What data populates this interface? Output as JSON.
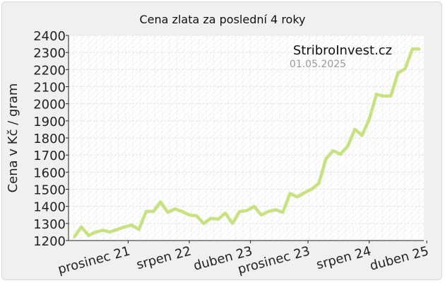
{
  "chart_data": {
    "type": "line",
    "title": "Cena zlata za poslední 4 roky",
    "ylabel": "Cena v Kč / gram",
    "xlabel": "",
    "ylim": [
      1200,
      2400
    ],
    "yticks": [
      1200,
      1300,
      1400,
      1500,
      1600,
      1700,
      1800,
      1900,
      2000,
      2100,
      2200,
      2300,
      2400
    ],
    "x_tick_labels": [
      "prosinec 21",
      "srpen 22",
      "duben 23",
      "prosinec 23",
      "srpen 24",
      "duben 25"
    ],
    "grid": true,
    "watermark": "StribroInvest.cz",
    "date": "01.05.2025",
    "line_color": "#c8e27a",
    "series": [
      {
        "name": "",
        "values": [
          1220,
          1280,
          1230,
          1250,
          1260,
          1250,
          1265,
          1280,
          1290,
          1265,
          1370,
          1370,
          1425,
          1365,
          1385,
          1370,
          1350,
          1345,
          1300,
          1330,
          1325,
          1360,
          1300,
          1370,
          1375,
          1400,
          1350,
          1370,
          1380,
          1365,
          1475,
          1455,
          1480,
          1500,
          1535,
          1680,
          1725,
          1705,
          1750,
          1850,
          1815,
          1910,
          2055,
          2045,
          2045,
          2180,
          2205,
          2320,
          2320
        ]
      }
    ]
  }
}
